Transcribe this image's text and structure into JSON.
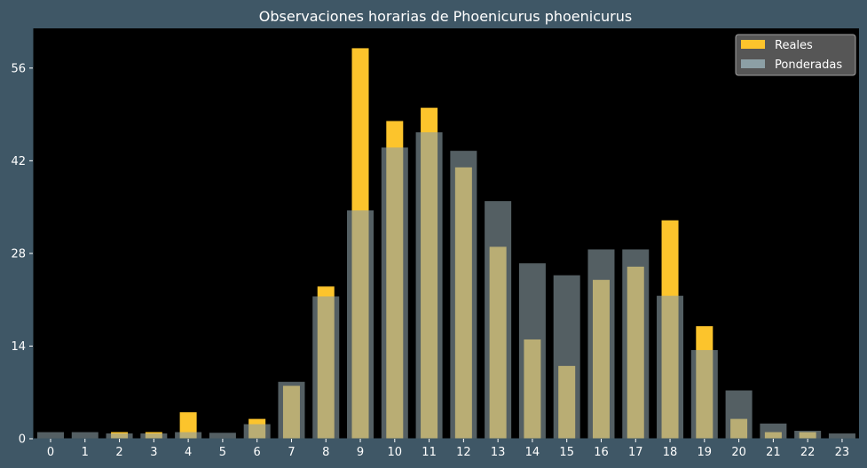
{
  "chart_data": {
    "type": "bar",
    "title": "Observaciones horarias de Phoenicurus phoenicurus",
    "xlabel": "",
    "ylabel": "",
    "categories": [
      "0",
      "1",
      "2",
      "3",
      "4",
      "5",
      "6",
      "7",
      "8",
      "9",
      "10",
      "11",
      "12",
      "13",
      "14",
      "15",
      "16",
      "17",
      "18",
      "19",
      "20",
      "21",
      "22",
      "23"
    ],
    "ylim": [
      0,
      62
    ],
    "yticks": [
      0,
      14,
      28,
      42,
      56
    ],
    "grid": false,
    "legend_position": "top-right",
    "series": [
      {
        "name": "Reales",
        "color": "#fcc42c",
        "values": [
          0,
          0,
          1,
          1,
          4,
          0,
          3,
          8,
          23,
          59,
          48,
          50,
          41,
          29,
          15,
          11,
          24,
          26,
          33,
          17,
          3,
          1,
          1,
          0
        ]
      },
      {
        "name": "Ponderadas",
        "color": "#8c9fa5",
        "values": [
          1,
          1,
          0.8,
          0.8,
          1,
          0.9,
          2.2,
          8.6,
          21.5,
          34.5,
          44,
          46.3,
          43.5,
          35.9,
          26.5,
          24.7,
          28.6,
          28.6,
          21.6,
          13.4,
          7.3,
          2.3,
          1.2,
          0.8
        ]
      }
    ]
  }
}
